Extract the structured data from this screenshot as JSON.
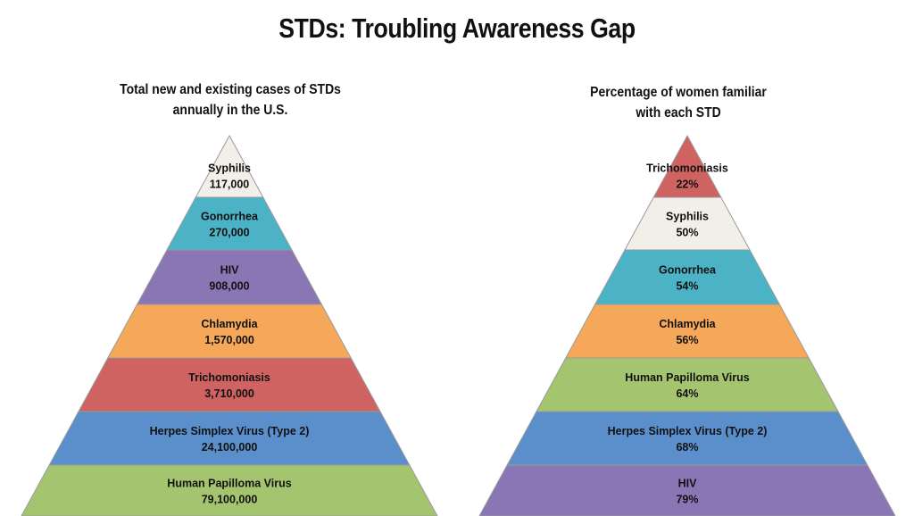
{
  "title": "STDs: Troubling Awareness Gap",
  "colors": {
    "cream": "#f1efe8",
    "teal": "#4bb3c5",
    "purple": "#8a75b5",
    "orange": "#f5a75a",
    "red": "#cf6361",
    "blue": "#5b8fcc",
    "green": "#a5c46f"
  },
  "chart_data": [
    {
      "type": "pyramid",
      "title": "Total new and existing cases of STDs\nannually in the U.S.",
      "categories": [
        "Syphilis",
        "Gonorrhea",
        "HIV",
        "Chlamydia",
        "Trichomoniasis",
        "Herpes Simplex Virus (Type 2)",
        "Human Papilloma Virus"
      ],
      "values": [
        117000,
        270000,
        908000,
        1570000,
        3710000,
        24100000,
        79100000
      ],
      "value_labels": [
        "117,000",
        "270,000",
        "908,000",
        "1,570,000",
        "3,710,000",
        "24,100,000",
        "79,100,000"
      ],
      "colors": [
        "#f1efe8",
        "#4bb3c5",
        "#8a75b5",
        "#f5a75a",
        "#cf6361",
        "#5b8fcc",
        "#a5c46f"
      ]
    },
    {
      "type": "pyramid",
      "title": "Percentage of women familiar\nwith each STD",
      "categories": [
        "Trichomoniasis",
        "Syphilis",
        "Gonorrhea",
        "Chlamydia",
        "Human Papilloma Virus",
        "Herpes Simplex Virus (Type 2)",
        "HIV"
      ],
      "values": [
        22,
        50,
        54,
        56,
        64,
        68,
        79
      ],
      "value_labels": [
        "22%",
        "50%",
        "54%",
        "56%",
        "64%",
        "68%",
        "79%"
      ],
      "colors": [
        "#cf6361",
        "#f1efe8",
        "#4bb3c5",
        "#f5a75a",
        "#a5c46f",
        "#5b8fcc",
        "#8a75b5"
      ]
    }
  ]
}
